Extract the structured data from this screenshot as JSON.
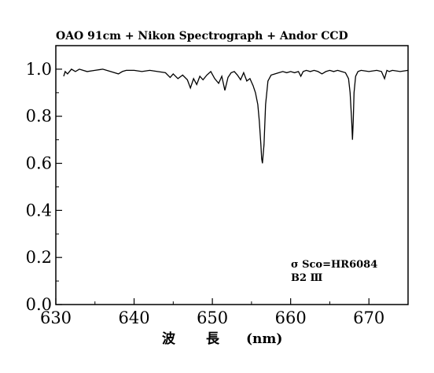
{
  "chart_data": {
    "type": "line",
    "title": "OAO 91cm + Nikon Spectrograph + Andor CCD",
    "xlabel": "波 長 (nm)",
    "xlabel_parts": [
      "波",
      "長",
      "(nm)"
    ],
    "ylabel": "",
    "xlim": [
      630,
      675
    ],
    "ylim": [
      0.0,
      1.1
    ],
    "x_ticks": [
      630,
      640,
      650,
      660,
      670
    ],
    "x_tick_labels": [
      "630",
      "640",
      "650",
      "660",
      "670"
    ],
    "y_ticks": [
      0.0,
      0.2,
      0.4,
      0.6,
      0.8,
      1.0
    ],
    "y_tick_labels": [
      "0.0",
      "0.2",
      "0.4",
      "0.6",
      "0.8",
      "1.0"
    ],
    "grid": false,
    "annotations": [
      "σ Sco=HR6084",
      "B2 Ⅲ"
    ],
    "series": [
      {
        "x": [
          631.0,
          631.2,
          631.5,
          632.0,
          632.5,
          633.0,
          634.0,
          635.0,
          636.0,
          637.0,
          638.0,
          638.5,
          639.0,
          640.0,
          641.0,
          642.0,
          643.0,
          644.0,
          644.6,
          645.0,
          645.6,
          646.2,
          646.8,
          647.2,
          647.6,
          648.0,
          648.4,
          648.8,
          649.3,
          649.8,
          650.3,
          650.8,
          651.2,
          651.6,
          652.0,
          652.4,
          652.8,
          653.2,
          653.6,
          654.0,
          654.4,
          654.8,
          655.2,
          655.5,
          655.8,
          656.0,
          656.2,
          656.3,
          656.4,
          656.6,
          656.8,
          657.1,
          657.5,
          658.0,
          658.5,
          659.0,
          659.5,
          660.0,
          660.5,
          661.0,
          661.3,
          661.6,
          662.0,
          662.5,
          663.0,
          663.5,
          664.0,
          664.5,
          665.0,
          665.5,
          666.0,
          666.5,
          667.0,
          667.4,
          667.6,
          667.8,
          667.9,
          668.0,
          668.1,
          668.3,
          668.6,
          669.0,
          670.0,
          671.0,
          671.6,
          672.0,
          672.3,
          672.6,
          673.0,
          674.0,
          675.0
        ],
        "y": [
          0.97,
          0.99,
          0.98,
          1.0,
          0.99,
          1.0,
          0.99,
          0.995,
          1.0,
          0.99,
          0.98,
          0.99,
          0.995,
          0.995,
          0.99,
          0.995,
          0.99,
          0.985,
          0.965,
          0.98,
          0.96,
          0.975,
          0.955,
          0.92,
          0.96,
          0.935,
          0.97,
          0.955,
          0.975,
          0.99,
          0.96,
          0.94,
          0.97,
          0.91,
          0.965,
          0.985,
          0.99,
          0.975,
          0.955,
          0.985,
          0.95,
          0.96,
          0.93,
          0.9,
          0.85,
          0.78,
          0.68,
          0.62,
          0.6,
          0.68,
          0.85,
          0.95,
          0.975,
          0.98,
          0.985,
          0.99,
          0.985,
          0.99,
          0.985,
          0.99,
          0.97,
          0.99,
          0.995,
          0.99,
          0.995,
          0.99,
          0.98,
          0.99,
          0.995,
          0.99,
          0.995,
          0.99,
          0.985,
          0.96,
          0.9,
          0.78,
          0.7,
          0.78,
          0.9,
          0.97,
          0.99,
          0.995,
          0.99,
          0.995,
          0.99,
          0.96,
          0.995,
          0.99,
          0.995,
          0.99,
          0.995
        ]
      }
    ]
  }
}
